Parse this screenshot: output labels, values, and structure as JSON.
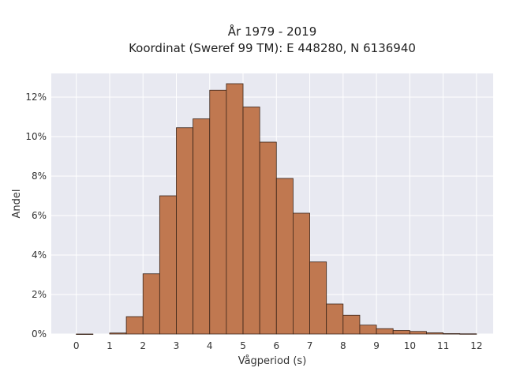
{
  "chart_data": {
    "type": "bar",
    "title": "År 1979 - 2019",
    "subtitle": "Koordinat (Sweref 99 TM): E 448280, N 6136940",
    "xlabel": "Vågperiod (s)",
    "ylabel": "Andel",
    "bin_width": 0.5,
    "x_ticks": [
      0,
      1,
      2,
      3,
      4,
      5,
      6,
      7,
      8,
      9,
      10,
      11,
      12
    ],
    "y_ticks": [
      0,
      2,
      4,
      6,
      8,
      10,
      12
    ],
    "y_tick_suffix": "%",
    "xlim": [
      -0.75,
      12.5
    ],
    "ylim": [
      0,
      13.2
    ],
    "grid": true,
    "bar_color": "#c07850",
    "edge_color": "#3a2418",
    "background_color": "#e8e9f1",
    "bars": [
      {
        "x_start": 0.0,
        "value": 0.0
      },
      {
        "x_start": 1.0,
        "value": 0.05
      },
      {
        "x_start": 1.5,
        "value": 0.88
      },
      {
        "x_start": 2.0,
        "value": 3.05
      },
      {
        "x_start": 2.5,
        "value": 7.0
      },
      {
        "x_start": 3.0,
        "value": 10.45
      },
      {
        "x_start": 3.5,
        "value": 10.9
      },
      {
        "x_start": 4.0,
        "value": 12.35
      },
      {
        "x_start": 4.5,
        "value": 12.68
      },
      {
        "x_start": 5.0,
        "value": 11.5
      },
      {
        "x_start": 5.5,
        "value": 9.72
      },
      {
        "x_start": 6.0,
        "value": 7.88
      },
      {
        "x_start": 6.5,
        "value": 6.12
      },
      {
        "x_start": 7.0,
        "value": 3.65
      },
      {
        "x_start": 7.5,
        "value": 1.52
      },
      {
        "x_start": 8.0,
        "value": 0.95
      },
      {
        "x_start": 8.5,
        "value": 0.45
      },
      {
        "x_start": 9.0,
        "value": 0.27
      },
      {
        "x_start": 9.5,
        "value": 0.18
      },
      {
        "x_start": 10.0,
        "value": 0.13
      },
      {
        "x_start": 10.5,
        "value": 0.06
      },
      {
        "x_start": 11.0,
        "value": 0.02
      },
      {
        "x_start": 11.5,
        "value": 0.01
      }
    ]
  }
}
